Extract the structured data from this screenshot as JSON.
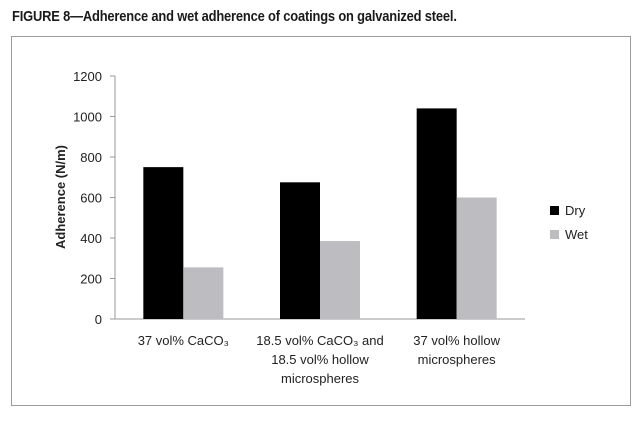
{
  "figure": {
    "title": "FIGURE 8—Adherence and wet adherence of coatings on galvanized steel."
  },
  "chart_data": {
    "type": "bar",
    "title": "FIGURE 8—Adherence and wet adherence of coatings on galvanized steel.",
    "ylabel": "Adherence (N/m)",
    "xlabel": "",
    "ylim": [
      0,
      1200
    ],
    "yticks": [
      0,
      200,
      400,
      600,
      800,
      1000,
      1200
    ],
    "grid": false,
    "legend_position": "right",
    "categories": [
      [
        "37 vol% CaCO₃"
      ],
      [
        "18.5 vol% CaCO₃  and",
        "18.5 vol% hollow",
        "microspheres"
      ],
      [
        "37 vol% hollow",
        "microspheres"
      ]
    ],
    "series": [
      {
        "name": "Dry",
        "color": "#000000",
        "values": [
          750,
          675,
          1040
        ]
      },
      {
        "name": "Wet",
        "color": "#bdbdc1",
        "values": [
          255,
          385,
          600
        ]
      }
    ]
  }
}
